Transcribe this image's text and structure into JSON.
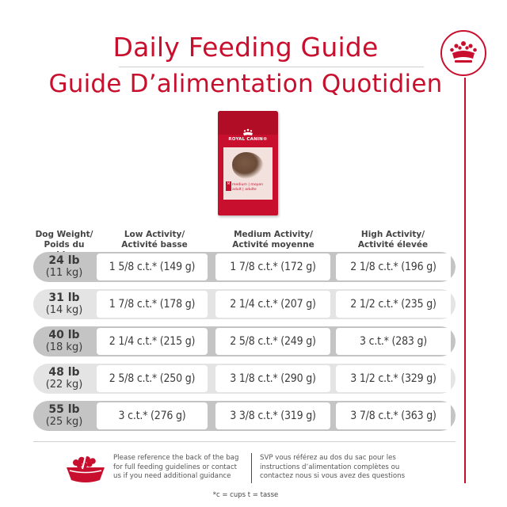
{
  "titles": {
    "en": "Daily Feeding Guide",
    "fr": "Guide D’alimentation Quotidien"
  },
  "product": {
    "brand": "ROYAL CANIN®",
    "size_code": "M",
    "label": "medium | moyen",
    "sub_label": "adult | adulte",
    "icon": "crown-icon"
  },
  "table": {
    "headers": [
      {
        "line1": "Dog Weight/",
        "line2": "Poids du chien"
      },
      {
        "line1": "Low Activity/",
        "line2": "Activité basse"
      },
      {
        "line1": "Medium Activity/",
        "line2": "Activité moyenne"
      },
      {
        "line1": "High Activity/",
        "line2": "Activité élevée"
      }
    ],
    "rows": [
      {
        "lb": "24 lb",
        "kg": "(11 kg)",
        "low": "1 5/8 c.t.* (149 g)",
        "medium": "1 7/8 c.t.* (172 g)",
        "high": "2 1/8 c.t.* (196 g)"
      },
      {
        "lb": "31 lb",
        "kg": "(14 kg)",
        "low": "1 7/8 c.t.* (178 g)",
        "medium": "2 1/4 c.t.* (207 g)",
        "high": "2 1/2 c.t.* (235 g)"
      },
      {
        "lb": "40 lb",
        "kg": "(18 kg)",
        "low": "2 1/4 c.t.* (215 g)",
        "medium": "2 5/8 c.t.* (249 g)",
        "high": "3 c.t.* (283 g)"
      },
      {
        "lb": "48 lb",
        "kg": "(22 kg)",
        "low": "2 5/8 c.t.* (250 g)",
        "medium": "3 1/8 c.t.* (290 g)",
        "high": "3 1/2 c.t.* (329 g)"
      },
      {
        "lb": "55 lb",
        "kg": "(25 kg)",
        "low": "3 c.t.* (276 g)",
        "medium": "3 3/8 c.t.* (319 g)",
        "high": "3 7/8 c.t.* (363 g)"
      }
    ]
  },
  "notes": {
    "en": "Please reference the back of the bag for full feeding guidelines or contact us if you need additional guidance",
    "fr": "SVP vous référez au dos du sac pour les instructions d’alimentation complètes ou contactez nous si vous avez des questions",
    "bowl_icon": "food-bowl-icon"
  },
  "footnote": "*c = cups t = tasse",
  "colors": {
    "brand_red": "#c8102e",
    "row_dark": "#c4c4c4",
    "row_light": "#e4e4e4"
  }
}
